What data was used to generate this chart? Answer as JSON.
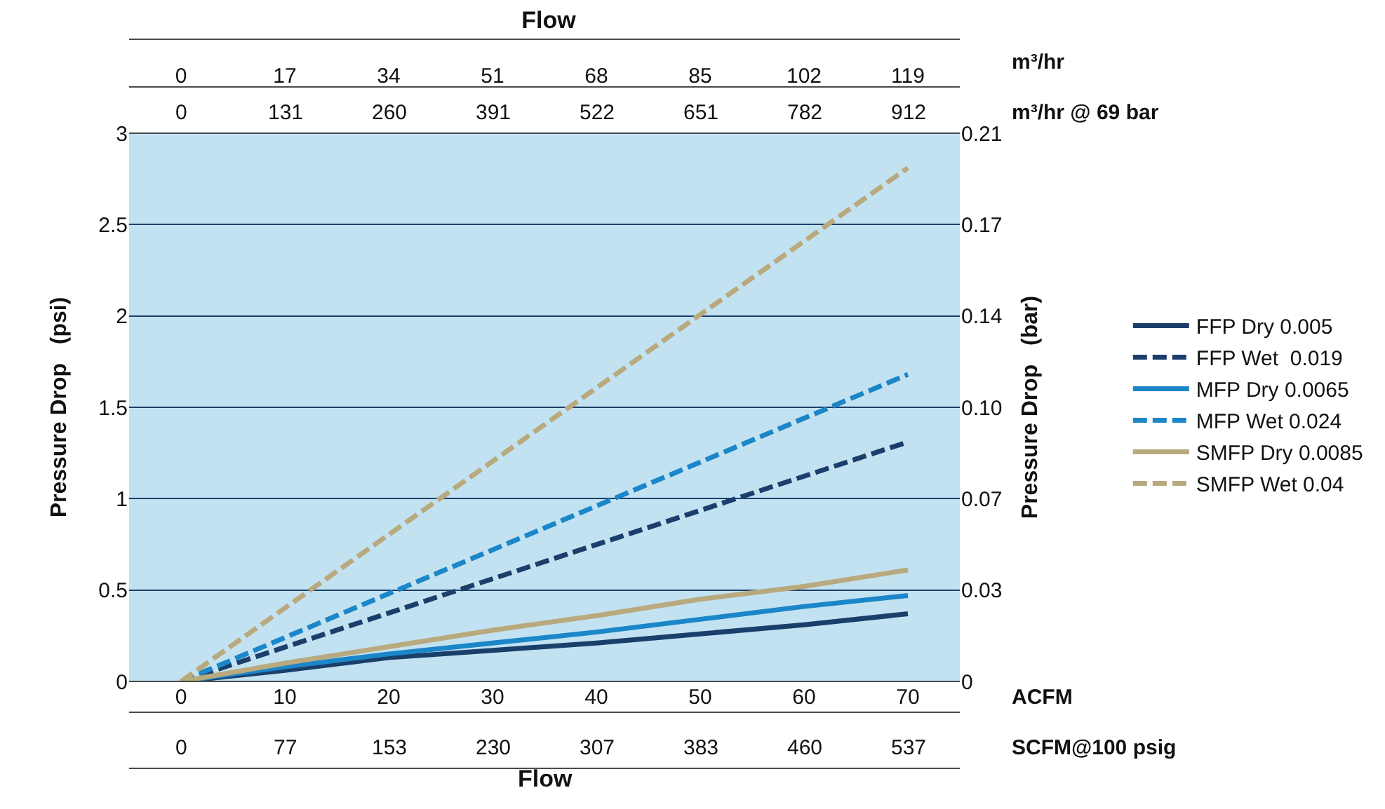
{
  "chart_data": {
    "type": "line",
    "title": "Flow",
    "xlabel": "ACFM",
    "ylabel": "Pressure Drop   (psi)",
    "y2label": "Pressure Drop   (bar)",
    "x2label": "m³/hr",
    "annotations": [
      "Flow",
      "m³/hr @ 69 bar",
      "0",
      "131",
      "260",
      "391",
      "522",
      "651",
      "782",
      "912",
      "SCFM@100 psig",
      "0",
      "77",
      "153",
      "230",
      "307",
      "383",
      "460",
      "537"
    ],
    "xlim": [
      -5,
      75
    ],
    "xticks": [
      0,
      10,
      20,
      30,
      40,
      50,
      60,
      70
    ],
    "x2lim": [
      -8.5,
      127.5
    ],
    "x2ticks": [
      0,
      17,
      34,
      51,
      68,
      85,
      102,
      119
    ],
    "ylim": [
      0,
      3
    ],
    "yticks": [
      0,
      0.5,
      1,
      1.5,
      2,
      2.5,
      3
    ],
    "y2lim": [
      0,
      0.2068
    ],
    "y2ticks": [
      0,
      {
        "value": 0.0345,
        "label": "0.03"
      },
      {
        "value": 0.0689,
        "label": "0.07"
      },
      {
        "value": 0.1034,
        "label": "0.10"
      },
      {
        "value": 0.1379,
        "label": "0.14"
      },
      {
        "value": 0.1724,
        "label": "0.17"
      },
      {
        "value": 0.2068,
        "label": "0.21"
      }
    ],
    "grid": "y",
    "legend": "right",
    "marker": "none",
    "series": [
      {
        "name": "FFP Dry 0.005",
        "color": "#1b3f6b",
        "line_style": "solid",
        "x": [
          0,
          10,
          20,
          30,
          40,
          50,
          60,
          70
        ],
        "values": [
          0,
          0.06,
          0.13,
          0.17,
          0.21,
          0.26,
          0.31,
          0.37
        ]
      },
      {
        "name": "FFP Wet  0.019",
        "color": "#1b3f6b",
        "line_style": "dashed",
        "x": [
          0,
          70
        ],
        "values": [
          0,
          1.31
        ]
      },
      {
        "name": "MFP Dry 0.0065",
        "color": "#1b86c8",
        "line_style": "solid",
        "x": [
          0,
          10,
          20,
          30,
          40,
          50,
          60,
          70
        ],
        "values": [
          0,
          0.08,
          0.15,
          0.21,
          0.27,
          0.34,
          0.41,
          0.47
        ]
      },
      {
        "name": "MFP Wet 0.024",
        "color": "#1b86c8",
        "line_style": "dashed",
        "x": [
          0,
          70
        ],
        "values": [
          0,
          1.68
        ]
      },
      {
        "name": "SMFP Dry 0.0085",
        "color": "#b8aa7e",
        "line_style": "solid",
        "x": [
          0,
          10,
          20,
          30,
          40,
          50,
          60,
          70
        ],
        "values": [
          0,
          0.1,
          0.19,
          0.28,
          0.36,
          0.45,
          0.52,
          0.61
        ]
      },
      {
        "name": "SMFP Wet 0.04",
        "color": "#b8aa7e",
        "line_style": "dashed",
        "x": [
          0,
          70
        ],
        "values": [
          0,
          2.81
        ]
      }
    ]
  }
}
